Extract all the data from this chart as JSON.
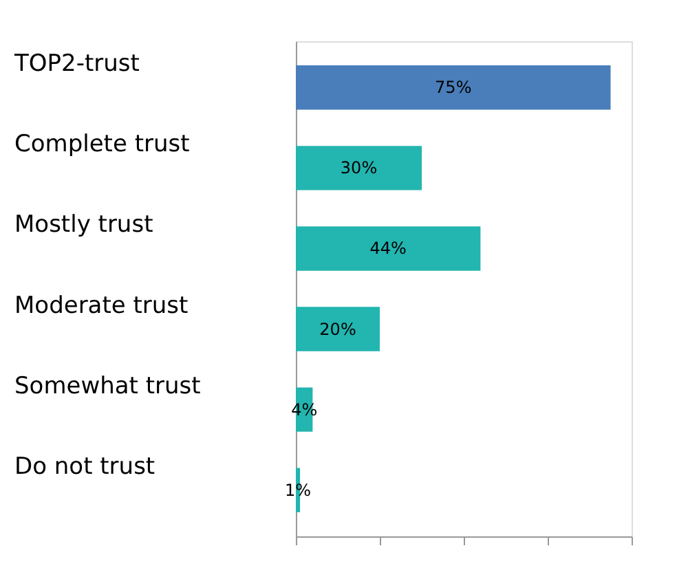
{
  "chart_data": {
    "type": "bar",
    "orientation": "horizontal",
    "categories": [
      "TOP2-trust",
      "Complete trust",
      "Mostly trust",
      "Moderate trust",
      "Somewhat trust",
      "Do not trust"
    ],
    "values": [
      75,
      30,
      44,
      20,
      4,
      1
    ],
    "colors": [
      "#4a7ebb",
      "#23b5af",
      "#23b5af",
      "#23b5af",
      "#23b5af",
      "#23b5af"
    ],
    "value_labels": [
      "75%",
      "30%",
      "44%",
      "20%",
      "4%",
      "1%"
    ],
    "xlim": [
      0,
      80
    ],
    "tick_labels": "y",
    "grid": false,
    "legend": false
  }
}
